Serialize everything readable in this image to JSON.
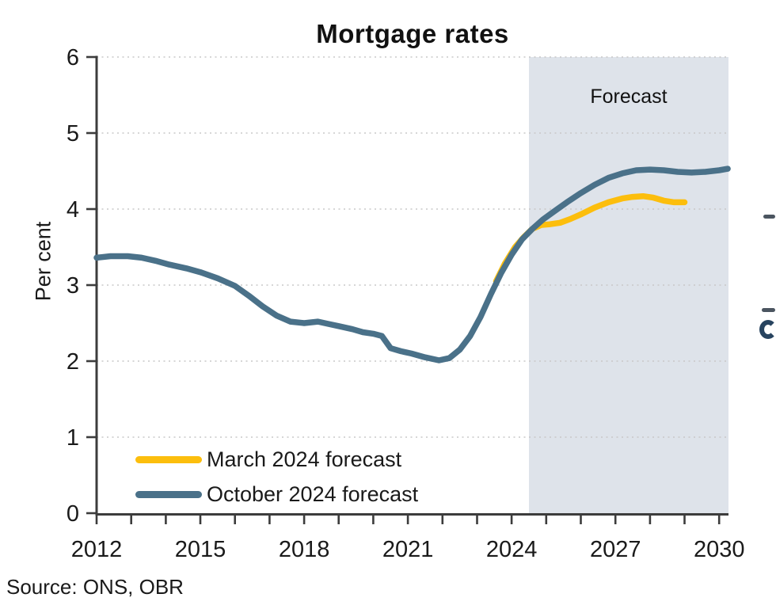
{
  "title": "Mortgage rates",
  "source_note": "Source: ONS, OBR",
  "colors": {
    "march_line": "#FCBE0D",
    "october_line": "#4A7189",
    "forecast_band": "#DEE3EA",
    "axis": "#3C3C3C",
    "gridline": "#C8C8C8",
    "text": "#1A1A1A"
  },
  "chart_data": {
    "type": "line",
    "title": "Mortgage rates",
    "xlabel": "",
    "ylabel": "Per cent",
    "xlim": [
      2012,
      2030.27
    ],
    "ylim": [
      0,
      6
    ],
    "yticks": [
      0,
      1,
      2,
      3,
      4,
      5,
      6
    ],
    "xticks": [
      2012,
      2013,
      2014,
      2015,
      2016,
      2017,
      2018,
      2019,
      2020,
      2021,
      2022,
      2023,
      2024,
      2025,
      2026,
      2027,
      2028,
      2029,
      2030
    ],
    "xtick_labels": [
      "2012",
      "2015",
      "2018",
      "2021",
      "2024",
      "2027",
      "2030"
    ],
    "grid": "horizontal-dotted",
    "legend_position": "inside-bottom-left",
    "forecast_band": {
      "start": 2024.5,
      "end": 2030.27,
      "label": "Forecast",
      "color": "#DEE3EA"
    },
    "axis_color": "#3C3C3C",
    "grid_color": "#C8C8C8",
    "series": [
      {
        "name": "March 2024 forecast",
        "color": "#FCBE0D",
        "x": [
          2023.55,
          2023.8,
          2024.1,
          2024.35,
          2024.6,
          2024.85,
          2025.1,
          2025.4,
          2025.7,
          2026.0,
          2026.4,
          2026.8,
          2027.2,
          2027.5,
          2027.8,
          2028.1,
          2028.4,
          2028.7,
          2029.0
        ],
        "y": [
          3.05,
          3.28,
          3.5,
          3.63,
          3.74,
          3.79,
          3.8,
          3.82,
          3.87,
          3.93,
          4.02,
          4.09,
          4.14,
          4.16,
          4.17,
          4.15,
          4.11,
          4.09,
          4.09
        ]
      },
      {
        "name": "October 2024 forecast",
        "color": "#4A7189",
        "x": [
          2012.0,
          2012.4,
          2012.9,
          2013.3,
          2013.7,
          2014.1,
          2014.6,
          2015.0,
          2015.5,
          2016.0,
          2016.4,
          2016.8,
          2017.2,
          2017.6,
          2018.0,
          2018.4,
          2018.7,
          2019.0,
          2019.4,
          2019.7,
          2020.0,
          2020.25,
          2020.5,
          2020.8,
          2021.1,
          2021.5,
          2021.9,
          2022.2,
          2022.5,
          2022.8,
          2023.1,
          2023.4,
          2023.7,
          2024.0,
          2024.3,
          2024.6,
          2024.9,
          2025.2,
          2025.6,
          2026.0,
          2026.4,
          2026.8,
          2027.2,
          2027.6,
          2028.0,
          2028.4,
          2028.8,
          2029.2,
          2029.6,
          2030.0,
          2030.25
        ],
        "y": [
          3.36,
          3.38,
          3.38,
          3.36,
          3.32,
          3.27,
          3.22,
          3.17,
          3.09,
          2.99,
          2.86,
          2.72,
          2.6,
          2.52,
          2.5,
          2.52,
          2.49,
          2.46,
          2.42,
          2.38,
          2.36,
          2.33,
          2.17,
          2.13,
          2.1,
          2.05,
          2.01,
          2.04,
          2.15,
          2.33,
          2.58,
          2.88,
          3.16,
          3.4,
          3.6,
          3.74,
          3.86,
          3.96,
          4.09,
          4.21,
          4.32,
          4.41,
          4.47,
          4.51,
          4.52,
          4.51,
          4.49,
          4.48,
          4.49,
          4.51,
          4.53
        ]
      }
    ]
  }
}
